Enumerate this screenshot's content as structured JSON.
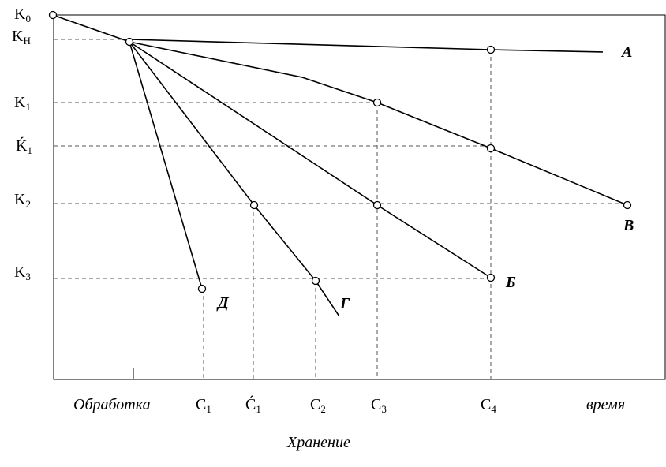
{
  "y_axis_labels": {
    "k0": {
      "main": "K",
      "sub": "0"
    },
    "kn": {
      "main": "K",
      "sub": "Н"
    },
    "k1": {
      "main": "K",
      "sub": "1"
    },
    "k1p": {
      "main": "Ḱ",
      "sub": "1"
    },
    "k2": {
      "main": "K",
      "sub": "2"
    },
    "k3": {
      "main": "K",
      "sub": "3"
    }
  },
  "x_axis_labels": {
    "processing": "Обработка",
    "c1": {
      "main": "C",
      "sub": "1"
    },
    "c1p": {
      "main": "Ć",
      "sub": "1"
    },
    "c2": {
      "main": "C",
      "sub": "2"
    },
    "c3": {
      "main": "C",
      "sub": "3"
    },
    "c4": {
      "main": "C",
      "sub": "4"
    },
    "time": "время"
  },
  "storage_label": "Хранение",
  "curve_labels": {
    "a": "А",
    "b": "Б",
    "v": "В",
    "g": "Г",
    "d": "Д"
  }
}
